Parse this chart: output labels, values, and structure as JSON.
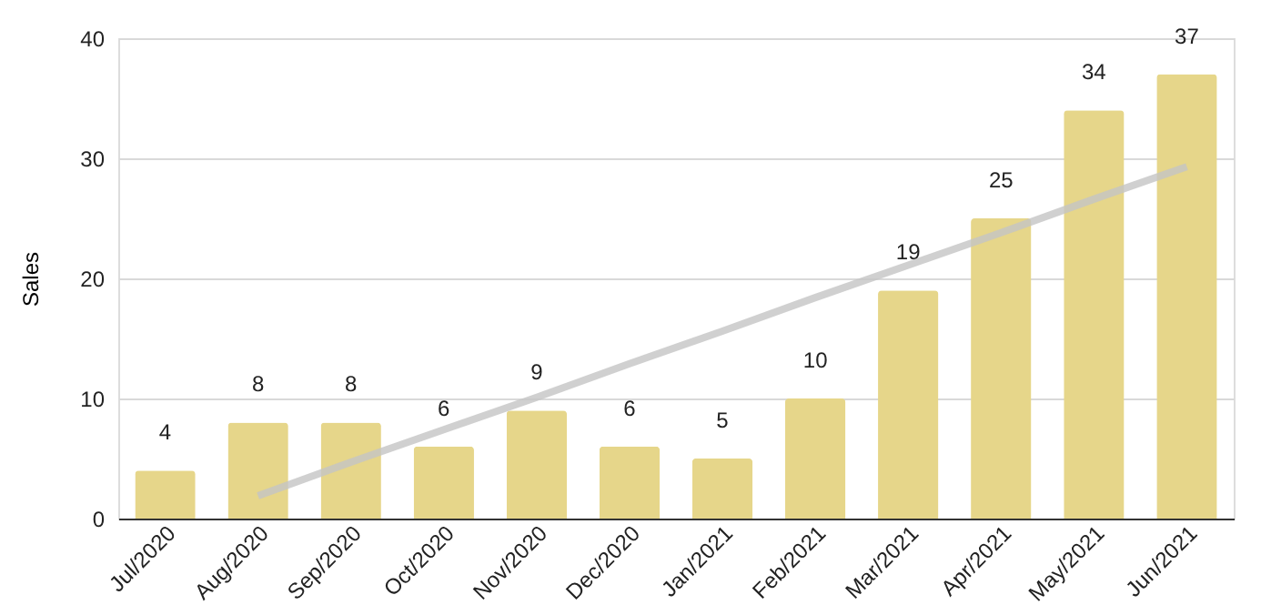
{
  "chart_data": {
    "type": "bar",
    "ylabel": "Sales",
    "categories": [
      "Jul/2020",
      "Aug/2020",
      "Sep/2020",
      "Oct/2020",
      "Nov/2020",
      "Dec/2020",
      "Jan/2021",
      "Feb/2021",
      "Mar/2021",
      "Apr/2021",
      "May/2021",
      "Jun/2021"
    ],
    "series": [
      {
        "color": "#e6d68a",
        "values": [
          4,
          8,
          8,
          6,
          9,
          6,
          5,
          10,
          19,
          25,
          34,
          37
        ],
        "value_labels": [
          "4",
          "8",
          "8",
          "6",
          "9",
          "6",
          "5",
          "10",
          "19",
          "25",
          "34",
          "37"
        ]
      },
      {
        "type": "line",
        "color": "#c4c4c4",
        "values": [
          null,
          1.9,
          4.7,
          7.4,
          10.1,
          12.9,
          15.6,
          18.4,
          21.1,
          23.8,
          26.6,
          29.3
        ]
      }
    ],
    "ylim": [
      0,
      40
    ],
    "yticks": [
      0,
      10,
      20,
      30,
      40
    ],
    "grid": "y"
  }
}
